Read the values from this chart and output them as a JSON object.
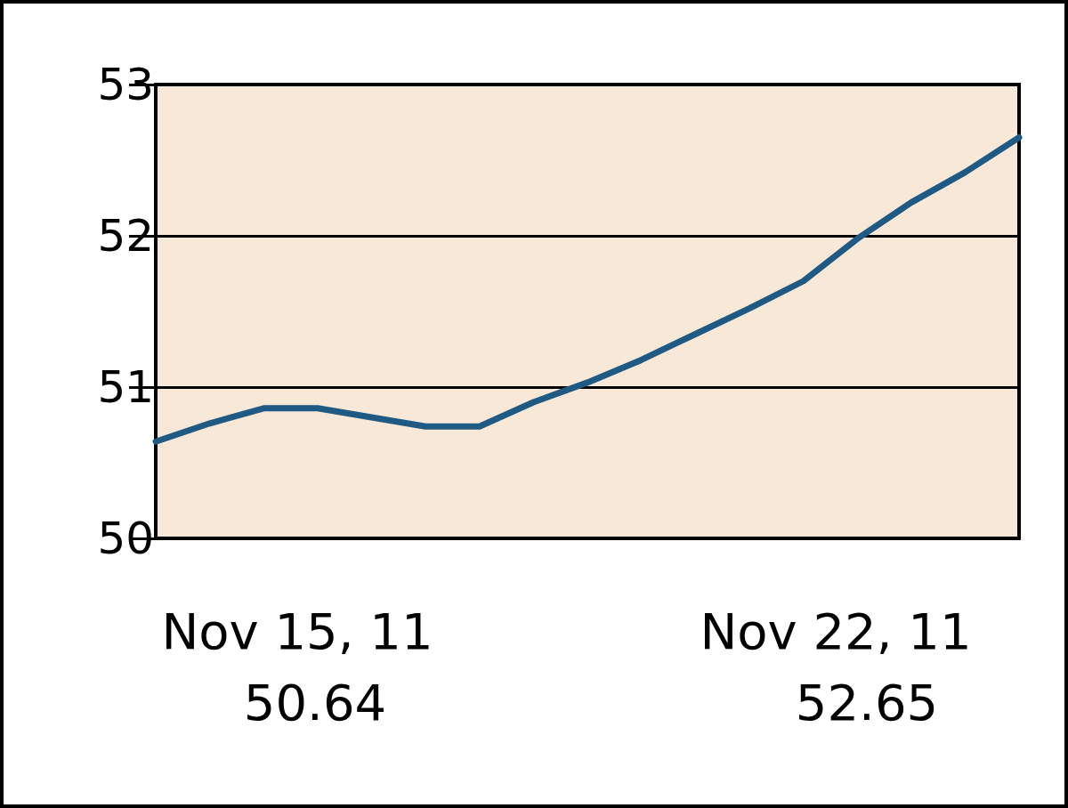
{
  "chart_data": {
    "type": "line",
    "categories": [
      null,
      null,
      null,
      null,
      null,
      null,
      null,
      null,
      null,
      null,
      null,
      null,
      null,
      null,
      null,
      null,
      null
    ],
    "values": [
      50.64,
      50.76,
      50.86,
      50.86,
      50.8,
      50.74,
      50.74,
      50.9,
      51.03,
      51.18,
      51.35,
      51.52,
      51.7,
      51.98,
      52.22,
      52.42,
      52.65
    ],
    "color": "#1f5a85",
    "ylim": [
      50,
      53
    ],
    "yticks": [
      50,
      51,
      52,
      53
    ],
    "grid": "y",
    "tick_labels": "y",
    "marker": "none",
    "line_style": "solid",
    "annotations": [
      "Nov 15, 11",
      "50.64",
      "Nov 22, 11",
      "52.65"
    ]
  }
}
